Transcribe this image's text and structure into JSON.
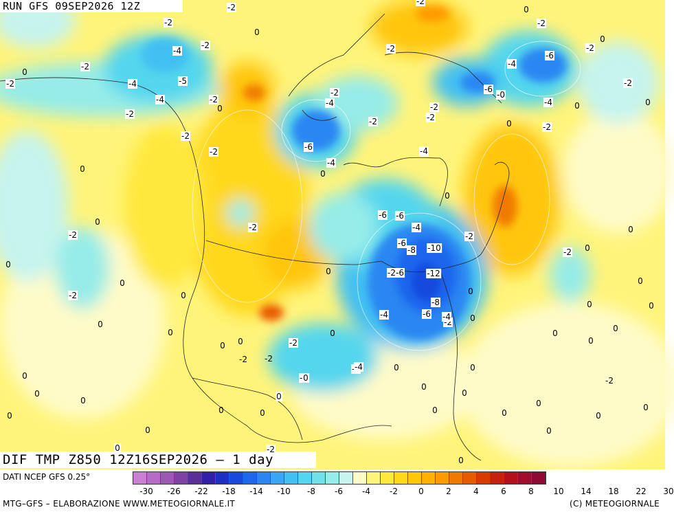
{
  "header": {
    "run": "RUN GFS 09SEP2026 12Z",
    "variable": "DIF TMP Z850 12Z16SEP2026 – 1 day"
  },
  "legend": {
    "source": "DATI NCEP GFS 0.25°",
    "tick_labels": [
      "-30",
      "-26",
      "-22",
      "-18",
      "-14",
      "-10",
      "-8",
      "-6",
      "-4",
      "-2",
      "0",
      "2",
      "4",
      "6",
      "8",
      "10",
      "14",
      "18",
      "22",
      "30"
    ],
    "colors": [
      "#c97fd2",
      "#b46cc6",
      "#9c58b4",
      "#7e41a4",
      "#5a2f98",
      "#3020a8",
      "#1a30c4",
      "#1848de",
      "#1f66ee",
      "#2b86f2",
      "#3aa5f4",
      "#42c0f2",
      "#53d6ee",
      "#6ee2e8",
      "#96ece8",
      "#c6f4ee",
      "#fffbc8",
      "#fff47a",
      "#ffe83e",
      "#ffd81a",
      "#ffc60a",
      "#ffb000",
      "#ff9a00",
      "#f07a00",
      "#e85a00",
      "#d83a00",
      "#c8200e",
      "#b4101c",
      "#a00c2a",
      "#8c0a34"
    ],
    "credit_left": "MTG–GFS – ELABORAZIONE WWW.METEOGIORNALE.IT",
    "credit_right": "(C) METEOGIORNALE"
  },
  "contour_labels": [
    "-2",
    "-2",
    "0",
    "-2",
    "0",
    "-4",
    "-2",
    "-2",
    "0",
    "-2",
    "0",
    "-6",
    "-4",
    "-2",
    "-5",
    "-2",
    "-4",
    "-4",
    "-2",
    "-2",
    "-2",
    "-4",
    "-2",
    "-2",
    "0",
    "-4",
    "-2",
    "0",
    "-2",
    "-2",
    "0",
    "-6",
    "-2",
    "-2",
    "-6",
    "-0",
    "0",
    "-2",
    "-4",
    "-4",
    "0",
    "0",
    "-6",
    "-2",
    "0",
    "-2",
    "0",
    "-4",
    "-6",
    "0",
    "-4",
    "-2",
    "0",
    "-2",
    "0",
    "0",
    "-2",
    "0",
    "-6",
    "-8",
    "-10",
    "-2",
    "0",
    "0",
    "0",
    "-2-6",
    "-12",
    "0",
    "0",
    "-2",
    "-8",
    "0",
    "0",
    "-4",
    "-6",
    "-4",
    "-2",
    "0",
    "0",
    "0",
    "0",
    "0",
    "0",
    "0",
    "0",
    "-2",
    "0",
    "-4",
    "-2",
    "0",
    "0",
    "0",
    "0",
    "-2",
    "0",
    "0",
    "0",
    "0",
    "0",
    "0",
    "0",
    "0",
    "0",
    "0",
    "0",
    "0",
    "0",
    "0",
    "-2",
    "0"
  ],
  "icons": {
    "map": "temperature-anomaly-map"
  }
}
